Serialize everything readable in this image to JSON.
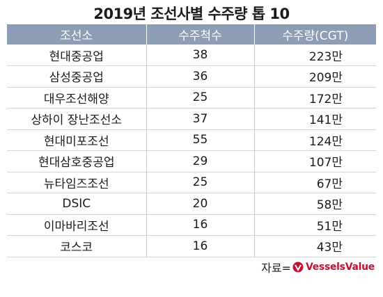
{
  "title": "2019년 조선사별 수주량 톱 10",
  "table": {
    "headers": [
      "조선소",
      "수주척수",
      "수주량(CGT)"
    ],
    "rows": [
      {
        "name": "현대중공업",
        "count": "38",
        "amount": "223만"
      },
      {
        "name": "삼성중공업",
        "count": "36",
        "amount": "209만"
      },
      {
        "name": "대우조선해양",
        "count": "25",
        "amount": "172만"
      },
      {
        "name": "상하이 장난조선소",
        "count": "37",
        "amount": "141만"
      },
      {
        "name": "현대미포조선",
        "count": "55",
        "amount": "124만"
      },
      {
        "name": "현대삼호중공업",
        "count": "29",
        "amount": "107만"
      },
      {
        "name": "뉴타임즈조선",
        "count": "25",
        "amount": "67만"
      },
      {
        "name": "DSIC",
        "count": "20",
        "amount": "58만"
      },
      {
        "name": "이마바리조선",
        "count": "16",
        "amount": "51만"
      },
      {
        "name": "코스코",
        "count": "16",
        "amount": "43만"
      }
    ]
  },
  "source": {
    "prefix": "자료=",
    "brand": "VesselsValue",
    "brand_color": "#c8102e"
  },
  "colors": {
    "header_bg": "#8c9db5",
    "header_text": "#ffffff",
    "row_divider": "#d3d7dd"
  }
}
